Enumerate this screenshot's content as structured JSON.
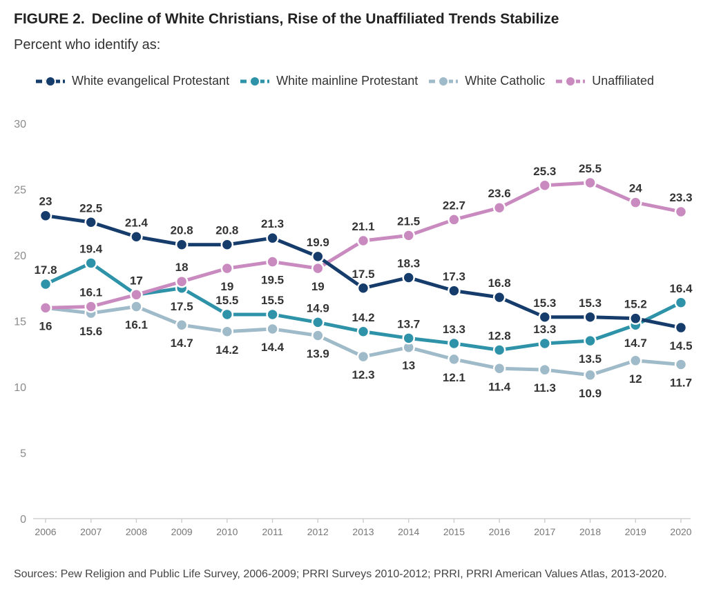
{
  "header": {
    "figure_label": "FIGURE 2.",
    "title": "Decline of White Christians, Rise of the Unaffiliated Trends Stabilize",
    "subtitle": "Percent who identify as:"
  },
  "legend": {
    "items": [
      {
        "label": "White evangelical Protestant",
        "color": "#163c6b"
      },
      {
        "label": "White mainline Protestant",
        "color": "#2e93a8"
      },
      {
        "label": "White Catholic",
        "color": "#9fbac8"
      },
      {
        "label": "Unaffiliated",
        "color": "#c98bbf"
      }
    ]
  },
  "source_note": "Sources: Pew Religion and Public Life Survey, 2006-2009; PRRI Surveys 2010-2012; PRRI, PRRI American Values Atlas, 2013-2020.",
  "chart_data": {
    "type": "line",
    "title": "Decline of White Christians, Rise of the Unaffiliated Trends Stabilize",
    "subtitle": "Percent who identify as:",
    "xlabel": "",
    "ylabel": "",
    "x": [
      "2006",
      "2007",
      "2008",
      "2009",
      "2010",
      "2011",
      "2012",
      "2013",
      "2014",
      "2015",
      "2016",
      "2017",
      "2018",
      "2019",
      "2020"
    ],
    "ylim": [
      0,
      30
    ],
    "yticks": [
      0,
      5,
      10,
      15,
      20,
      25,
      30
    ],
    "grid": false,
    "legend_position": "top",
    "series": [
      {
        "name": "White evangelical Protestant",
        "color": "#163c6b",
        "values": [
          23,
          22.5,
          21.4,
          20.8,
          20.8,
          21.3,
          19.9,
          17.5,
          18.3,
          17.3,
          16.8,
          15.3,
          15.3,
          15.2,
          14.5
        ],
        "labels": [
          "23",
          "22.5",
          "21.4",
          "20.8",
          "20.8",
          "21.3",
          "19.9",
          "17.5",
          "18.3",
          "17.3",
          "16.8",
          "15.3",
          "15.3",
          "15.2",
          "14.5"
        ],
        "label_pos": [
          "above",
          "above",
          "above",
          "above",
          "above",
          "above",
          "above",
          "above",
          "above",
          "above",
          "above",
          "above",
          "above",
          "above",
          "below"
        ]
      },
      {
        "name": "White mainline Protestant",
        "color": "#2e93a8",
        "values": [
          17.8,
          19.4,
          17,
          17.5,
          15.5,
          15.5,
          14.9,
          14.2,
          13.7,
          13.3,
          12.8,
          13.3,
          13.5,
          14.7,
          16.4
        ],
        "labels": [
          "17.8",
          "19.4",
          "17",
          "17.5",
          "15.5",
          "15.5",
          "14.9",
          "14.2",
          "13.7",
          "13.3",
          "12.8",
          "13.3",
          "13.5",
          "14.7",
          "16.4"
        ],
        "label_pos": [
          "above",
          "above",
          "above",
          "below",
          "above",
          "above",
          "above",
          "above",
          "above",
          "above",
          "above",
          "above",
          "below",
          "below",
          "above"
        ]
      },
      {
        "name": "White Catholic",
        "color": "#9fbac8",
        "values": [
          16,
          15.6,
          16.1,
          14.7,
          14.2,
          14.4,
          13.9,
          12.3,
          13,
          12.1,
          11.4,
          11.3,
          10.9,
          12,
          11.7
        ],
        "labels": [
          "16",
          "15.6",
          "16.1",
          "14.7",
          "14.2",
          "14.4",
          "13.9",
          "12.3",
          "13",
          "12.1",
          "11.4",
          "11.3",
          "10.9",
          "12",
          "11.7"
        ],
        "label_pos": [
          "below",
          "below",
          "below",
          "below",
          "below",
          "below",
          "below",
          "below",
          "below",
          "below",
          "below",
          "below",
          "below",
          "below",
          "below"
        ]
      },
      {
        "name": "Unaffiliated",
        "color": "#c98bbf",
        "values": [
          16,
          16.1,
          17,
          18,
          19,
          19.5,
          19,
          21.1,
          21.5,
          22.7,
          23.6,
          25.3,
          25.5,
          24,
          23.3
        ],
        "labels": [
          "16",
          "16.1",
          "17",
          "18",
          "19",
          "19.5",
          "19",
          "21.1",
          "21.5",
          "22.7",
          "23.6",
          "25.3",
          "25.5",
          "24",
          "23.3"
        ],
        "label_pos": [
          "hidden",
          "above",
          "above",
          "above",
          "below",
          "below",
          "below",
          "above",
          "above",
          "above",
          "above",
          "above",
          "above",
          "above",
          "above"
        ]
      }
    ]
  }
}
